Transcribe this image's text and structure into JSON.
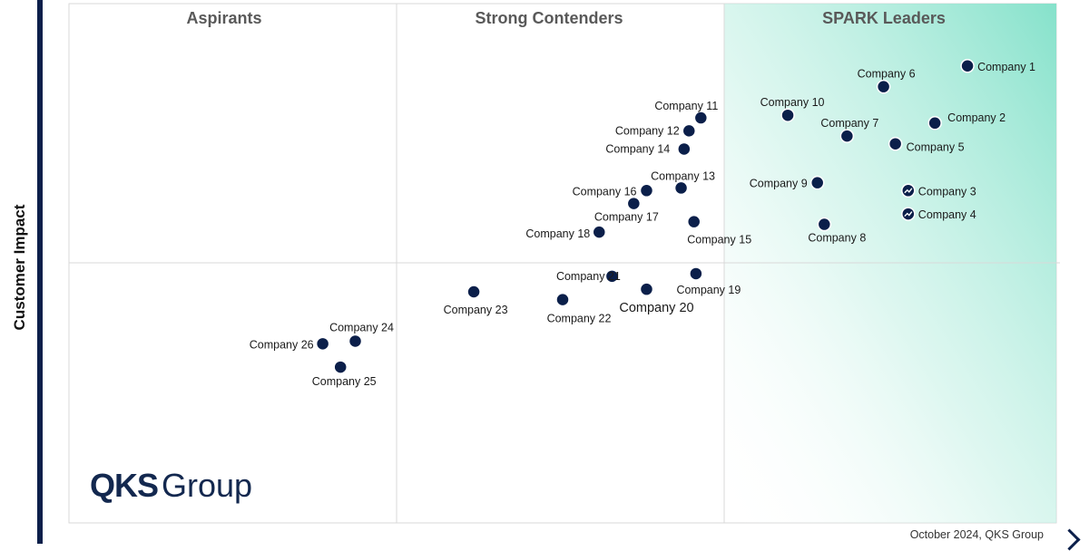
{
  "chart_data": {
    "type": "scatter",
    "title": "",
    "xlabel": "",
    "ylabel": "Customer Impact",
    "quadrants": [
      "Aspirants",
      "Strong Contenders",
      "SPARK Leaders"
    ],
    "points": [
      {
        "name": "Company 1",
        "x": 0.91,
        "y": 0.88,
        "trend": false
      },
      {
        "name": "Company 2",
        "x": 0.877,
        "y": 0.77,
        "trend": false
      },
      {
        "name": "Company 3",
        "x": 0.85,
        "y": 0.64,
        "trend": true
      },
      {
        "name": "Company 4",
        "x": 0.85,
        "y": 0.595,
        "trend": true
      },
      {
        "name": "Company 5",
        "x": 0.837,
        "y": 0.73,
        "trend": false
      },
      {
        "name": "Company 6",
        "x": 0.825,
        "y": 0.84,
        "trend": false
      },
      {
        "name": "Company 7",
        "x": 0.788,
        "y": 0.745,
        "trend": false
      },
      {
        "name": "Company 8",
        "x": 0.765,
        "y": 0.575,
        "trend": false
      },
      {
        "name": "Company 9",
        "x": 0.758,
        "y": 0.655,
        "trend": false
      },
      {
        "name": "Company 10",
        "x": 0.728,
        "y": 0.785,
        "trend": false
      },
      {
        "name": "Company 11",
        "x": 0.64,
        "y": 0.78,
        "trend": false
      },
      {
        "name": "Company 12",
        "x": 0.628,
        "y": 0.755,
        "trend": false
      },
      {
        "name": "Company 13",
        "x": 0.62,
        "y": 0.645,
        "trend": false
      },
      {
        "name": "Company 14",
        "x": 0.623,
        "y": 0.72,
        "trend": false
      },
      {
        "name": "Company 15",
        "x": 0.633,
        "y": 0.58,
        "trend": false
      },
      {
        "name": "Company 16",
        "x": 0.585,
        "y": 0.64,
        "trend": false
      },
      {
        "name": "Company 17",
        "x": 0.572,
        "y": 0.615,
        "trend": false
      },
      {
        "name": "Company 18",
        "x": 0.537,
        "y": 0.56,
        "trend": false
      },
      {
        "name": "Company 19",
        "x": 0.635,
        "y": 0.48,
        "trend": false
      },
      {
        "name": "Company 20",
        "x": 0.585,
        "y": 0.45,
        "trend": false
      },
      {
        "name": "Company 21",
        "x": 0.55,
        "y": 0.475,
        "trend": false
      },
      {
        "name": "Company 22",
        "x": 0.5,
        "y": 0.43,
        "trend": false
      },
      {
        "name": "Company 23",
        "x": 0.41,
        "y": 0.445,
        "trend": false
      },
      {
        "name": "Company 24",
        "x": 0.29,
        "y": 0.35,
        "trend": false
      },
      {
        "name": "Company 25",
        "x": 0.275,
        "y": 0.3,
        "trend": false
      },
      {
        "name": "Company 26",
        "x": 0.257,
        "y": 0.345,
        "trend": false
      }
    ],
    "xlim": [
      0,
      1
    ],
    "ylim": [
      0,
      1
    ],
    "grid": true,
    "colors": {
      "point": "#0b1f4a",
      "leader_gradient": "#7fe0c8",
      "quadrant_title": "#595959"
    }
  },
  "logo": {
    "bold": "QKS",
    "light": "Group"
  },
  "footer": "October 2024, QKS Group"
}
